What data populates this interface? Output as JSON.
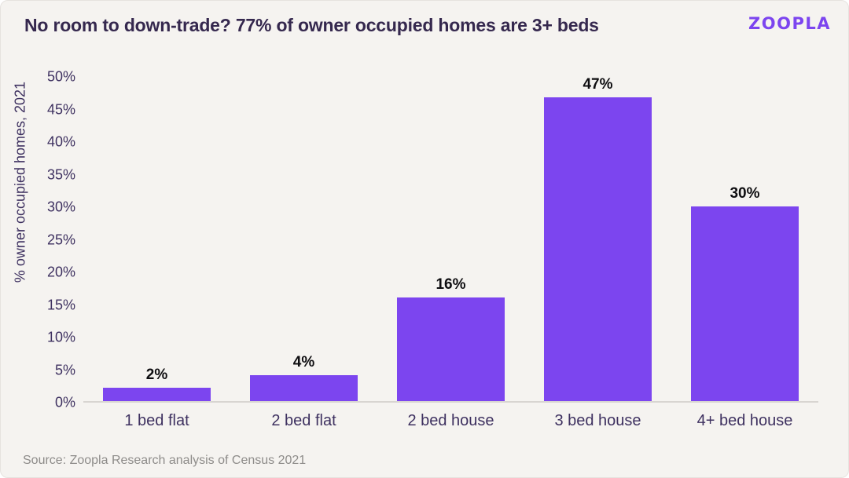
{
  "card": {
    "title": "No room to down-trade? 77% of owner occupied homes are 3+ beds",
    "logo_text": "zoopla",
    "source_note": "Source: Zoopla Research analysis of Census 2021"
  },
  "colors": {
    "background": "#F5F3F0",
    "bar": "#7C45EF",
    "title_text": "#35284E",
    "axis_text": "#3E3160",
    "data_label_text": "#0E0D10",
    "source_text": "#8E8C8A",
    "baseline": "#D8D5D1",
    "logo": "#7C45EF"
  },
  "chart_data": {
    "type": "bar",
    "title": "No room to down-trade? 77% of owner occupied homes are 3+ beds",
    "categories": [
      "1 bed flat",
      "2 bed flat",
      "2 bed house",
      "3 bed house",
      "4+ bed house"
    ],
    "values": [
      2,
      4,
      16,
      47,
      30
    ],
    "data_labels": [
      "2%",
      "4%",
      "16%",
      "47%",
      "30%"
    ],
    "xlabel": "",
    "ylabel": "% owner occupied homes, 2021",
    "ylim": [
      0,
      50
    ],
    "ytick_step": 5,
    "ytick_labels": [
      "0%",
      "5%",
      "10%",
      "15%",
      "20%",
      "25%",
      "30%",
      "35%",
      "40%",
      "45%",
      "50%"
    ],
    "grid": false,
    "legend": false,
    "legend_position": null,
    "bar_color": "#7C45EF"
  }
}
